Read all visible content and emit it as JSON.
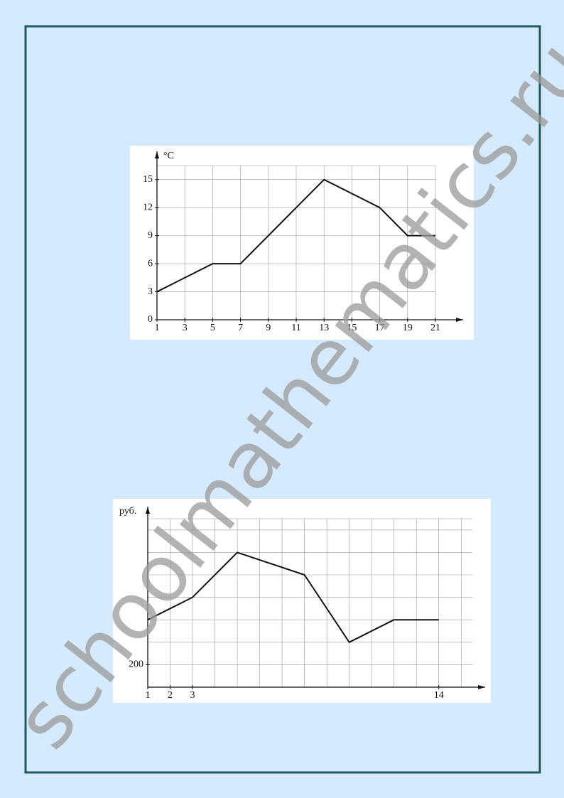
{
  "watermark": "schoolmathematics.ru",
  "chart_data": [
    {
      "type": "line",
      "y_label": "°C",
      "x": [
        1,
        5,
        7,
        13,
        17,
        19,
        21
      ],
      "values": [
        3,
        6,
        6,
        15,
        12,
        9,
        9
      ],
      "color": "#111111",
      "xlim": [
        1,
        21
      ],
      "ylim": [
        0,
        16.5
      ],
      "xticks": [
        1,
        3,
        5,
        7,
        9,
        11,
        13,
        15,
        17,
        19,
        21
      ],
      "yticks": [
        0,
        3,
        6,
        9,
        12,
        15
      ],
      "xgrid": [
        1,
        3,
        5,
        7,
        9,
        11,
        13,
        15,
        17,
        19,
        21
      ],
      "ygrid": [
        3,
        6,
        9,
        12,
        15
      ],
      "grid": true
    },
    {
      "type": "line",
      "y_label": "руб.",
      "x": [
        1,
        3,
        5,
        8,
        10,
        12,
        14
      ],
      "values": [
        220,
        230,
        250,
        240,
        210,
        220,
        220
      ],
      "color": "#111111",
      "xlim": [
        1,
        15.5
      ],
      "ylim": [
        190,
        265
      ],
      "xticks": [
        1,
        2,
        3,
        14
      ],
      "yticks": [
        200
      ],
      "xgrid": [
        2,
        3,
        4,
        5,
        6,
        7,
        8,
        9,
        10,
        11,
        12,
        13,
        14,
        15
      ],
      "ygrid": [
        200,
        210,
        220,
        230,
        240,
        250,
        260
      ],
      "grid": true
    }
  ]
}
